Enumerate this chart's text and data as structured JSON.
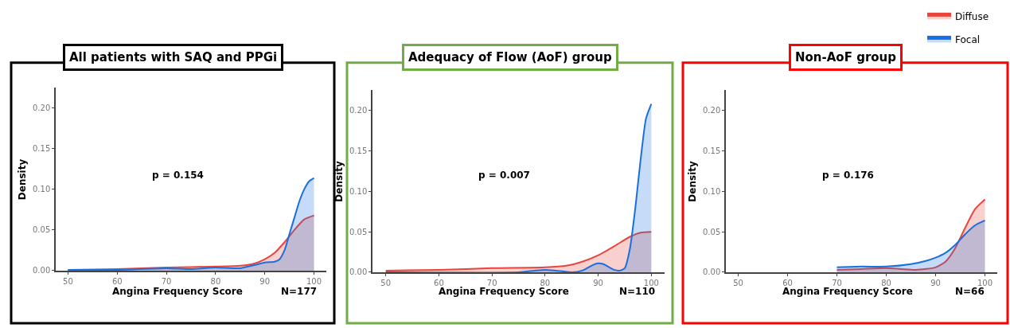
{
  "chart_data": [
    {
      "type": "area",
      "title": "All patients with SAQ and PPGi",
      "xlabel": "Angina Frequency Score",
      "ylabel": "Density",
      "annotations": [
        "p = 0.154",
        "N=177"
      ],
      "xlim": [
        47.5,
        102.5
      ],
      "ylim": [
        0,
        0.225
      ],
      "xticks": [
        50,
        60,
        70,
        80,
        90,
        100
      ],
      "yticks": [
        {
          "value": 0,
          "label": "0.00"
        },
        {
          "value": 0.05,
          "label": "0.05"
        },
        {
          "value": 0.1,
          "label": "0.10"
        },
        {
          "value": 0.15,
          "label": "0.15"
        },
        {
          "value": 0.2,
          "label": "0.20"
        }
      ],
      "legend": "top right",
      "series": [
        {
          "name": "Diffuse",
          "color": "#e8453c",
          "x": [
            50,
            60,
            70,
            80,
            85,
            88,
            90,
            92,
            94,
            96,
            98,
            100
          ],
          "values": [
            0.001,
            0.002,
            0.004,
            0.005,
            0.006,
            0.009,
            0.014,
            0.022,
            0.035,
            0.05,
            0.063,
            0.068
          ]
        },
        {
          "name": "Focal",
          "color": "#1a6fe0",
          "x": [
            50,
            60,
            70,
            75,
            80,
            85,
            88,
            90,
            92,
            93,
            94,
            95,
            96,
            97,
            98,
            99,
            100
          ],
          "values": [
            0.001,
            0.001,
            0.003,
            0.002,
            0.004,
            0.003,
            0.007,
            0.01,
            0.011,
            0.014,
            0.025,
            0.045,
            0.065,
            0.085,
            0.1,
            0.11,
            0.114
          ]
        }
      ]
    },
    {
      "type": "area",
      "title": "Adequacy of Flow (AoF) group",
      "xlabel": "Angina Frequency Score",
      "ylabel": "Density",
      "annotations": [
        "p = 0.007",
        "N=110"
      ],
      "xlim": [
        47.5,
        102.5
      ],
      "ylim": [
        0,
        0.225
      ],
      "xticks": [
        50,
        60,
        70,
        80,
        90,
        100
      ],
      "yticks": [
        {
          "value": 0,
          "label": "0.00"
        },
        {
          "value": 0.05,
          "label": "0.05"
        },
        {
          "value": 0.1,
          "label": "0.10"
        },
        {
          "value": 0.15,
          "label": "0.15"
        },
        {
          "value": 0.2,
          "label": "0.20"
        }
      ],
      "series": [
        {
          "color": "#e8453c",
          "x": [
            50,
            60,
            70,
            80,
            84,
            87,
            90,
            93,
            96,
            98,
            100
          ],
          "values": [
            0.002,
            0.003,
            0.005,
            0.006,
            0.008,
            0.013,
            0.021,
            0.032,
            0.044,
            0.049,
            0.05
          ]
        },
        {
          "color": "#1a6fe0",
          "x": [
            50,
            75,
            78,
            80,
            82,
            85,
            87,
            89,
            90,
            91,
            93,
            94,
            95,
            96,
            97,
            98,
            99,
            100
          ],
          "values": [
            0,
            0,
            0.002,
            0.003,
            0.002,
            0,
            0.002,
            0.009,
            0.011,
            0.01,
            0.003,
            0.002,
            0.005,
            0.03,
            0.08,
            0.14,
            0.19,
            0.208
          ]
        }
      ]
    },
    {
      "type": "area",
      "title": "Non-AoF group",
      "xlabel": "Angina Frequency Score",
      "ylabel": "Density",
      "annotations": [
        "p = 0.176",
        "N=66"
      ],
      "xlim": [
        47.5,
        102.5
      ],
      "ylim": [
        0,
        0.225
      ],
      "xticks": [
        50,
        60,
        70,
        80,
        90,
        100
      ],
      "yticks": [
        {
          "value": 0,
          "label": "0.00"
        },
        {
          "value": 0.05,
          "label": "0.05"
        },
        {
          "value": 0.1,
          "label": "0.10"
        },
        {
          "value": 0.15,
          "label": "0.15"
        },
        {
          "value": 0.2,
          "label": "0.20"
        }
      ],
      "series": [
        {
          "color": "#e8453c",
          "x": [
            70,
            75,
            80,
            83,
            86,
            90,
            92,
            94,
            96,
            98,
            100
          ],
          "values": [
            0.003,
            0.004,
            0.005,
            0.004,
            0.003,
            0.006,
            0.013,
            0.03,
            0.055,
            0.078,
            0.09
          ]
        },
        {
          "color": "#1a6fe0",
          "x": [
            70,
            75,
            80,
            85,
            88,
            90,
            92,
            94,
            96,
            98,
            100
          ],
          "values": [
            0.006,
            0.007,
            0.007,
            0.01,
            0.014,
            0.018,
            0.024,
            0.034,
            0.047,
            0.058,
            0.064
          ]
        }
      ]
    }
  ]
}
